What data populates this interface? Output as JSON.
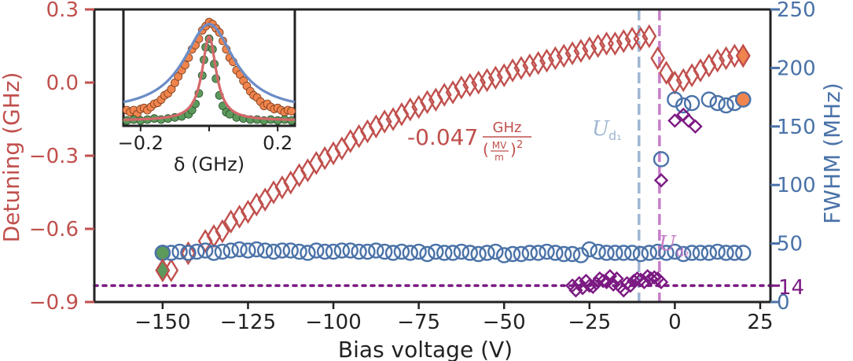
{
  "chart_data": {
    "type": "scatter",
    "xlabel": "Bias voltage (V)",
    "ylabel_left": "Detuning (GHz)",
    "ylabel_right": "FWHM (MHz)",
    "xlim": [
      -170,
      28
    ],
    "ylim_left": [
      -0.9,
      0.3
    ],
    "ylim_right": [
      0,
      250
    ],
    "x_ticks": [
      -150,
      -125,
      -100,
      -75,
      -50,
      -25,
      0,
      25
    ],
    "x_tick_labels": [
      "−150",
      "−125",
      "−100",
      "−75",
      "−50",
      "−25",
      "0",
      "25"
    ],
    "y_left_ticks": [
      -0.9,
      -0.6,
      -0.3,
      0.0,
      0.3
    ],
    "y_left_tick_labels": [
      "−0.9",
      "−0.6",
      "−0.3",
      "0.0",
      "0.3"
    ],
    "y_right_ticks": [
      0,
      50,
      100,
      150,
      200,
      250
    ],
    "y_right_tick_labels": [
      "0",
      "50",
      "100",
      "150",
      "200",
      "250"
    ],
    "colors": {
      "detuning": "#c0504d",
      "fwhm": "#4a72a8",
      "purple": "#7b1a82",
      "vline1": "#9fb6d2",
      "vline2": "#c77ec9",
      "highlight_orange": "#f0844d",
      "highlight_green": "#5b9a5b"
    },
    "series": [
      {
        "key": "detuning_red",
        "axis": "left",
        "marker": "diamond",
        "x": [
          -150,
          -147.5,
          -142.5,
          -137.5,
          -135,
          -132.5,
          -130,
          -127.5,
          -125,
          -122.5,
          -120,
          -117.5,
          -115,
          -112.5,
          -110,
          -107.5,
          -105,
          -102.5,
          -100,
          -97.5,
          -95,
          -92.5,
          -90,
          -87.5,
          -85,
          -82.5,
          -80,
          -77.5,
          -75,
          -72.5,
          -70,
          -67.5,
          -65,
          -62.5,
          -60,
          -57.5,
          -55,
          -52.5,
          -50,
          -47.5,
          -45,
          -42.5,
          -40,
          -37.5,
          -35,
          -32.5,
          -30,
          -27.5,
          -25,
          -22.5,
          -20,
          -17.5,
          -15,
          -12.5,
          -10,
          -7.5,
          -5,
          -2.5,
          0,
          2.5,
          5,
          7.5,
          10,
          12.5,
          15,
          17.5,
          20
        ],
        "y": [
          -0.77,
          -0.77,
          -0.7,
          -0.65,
          -0.63,
          -0.61,
          -0.57,
          -0.55,
          -0.53,
          -0.5,
          -0.48,
          -0.45,
          -0.43,
          -0.41,
          -0.38,
          -0.36,
          -0.33,
          -0.31,
          -0.29,
          -0.27,
          -0.24,
          -0.22,
          -0.2,
          -0.18,
          -0.16,
          -0.15,
          -0.13,
          -0.11,
          -0.1,
          -0.08,
          -0.07,
          -0.05,
          -0.04,
          -0.02,
          -0.01,
          0.0,
          0.01,
          0.02,
          0.03,
          0.05,
          0.06,
          0.07,
          0.08,
          0.09,
          0.1,
          0.11,
          0.12,
          0.13,
          0.14,
          0.15,
          0.16,
          0.16,
          0.17,
          0.18,
          0.18,
          0.19,
          0.1,
          0.04,
          0.0,
          0.01,
          0.03,
          0.05,
          0.07,
          0.09,
          0.1,
          0.11,
          0.11
        ]
      },
      {
        "key": "fwhm_blue",
        "axis": "right",
        "marker": "circle",
        "x": [
          -150,
          -147.5,
          -145,
          -142.5,
          -140,
          -137.5,
          -135,
          -132.5,
          -130,
          -127.5,
          -125,
          -122.5,
          -120,
          -117.5,
          -115,
          -112.5,
          -110,
          -107.5,
          -105,
          -102.5,
          -100,
          -97.5,
          -95,
          -92.5,
          -90,
          -87.5,
          -85,
          -82.5,
          -80,
          -77.5,
          -75,
          -72.5,
          -70,
          -67.5,
          -65,
          -62.5,
          -60,
          -57.5,
          -55,
          -52.5,
          -50,
          -47.5,
          -45,
          -42.5,
          -40,
          -37.5,
          -35,
          -32.5,
          -30,
          -27.5,
          -25,
          -22.5,
          -20,
          -17.5,
          -15,
          -12.5,
          -10,
          -7.5,
          -5,
          -2.5,
          0,
          2.5,
          5,
          7.5,
          10,
          12.5,
          15,
          17.5,
          20
        ],
        "y": [
          42,
          42,
          43,
          42,
          43,
          44,
          42,
          43,
          44,
          45,
          44,
          45,
          44,
          43,
          44,
          44,
          43,
          42,
          44,
          43,
          43,
          44,
          44,
          43,
          43,
          44,
          43,
          42,
          43,
          42,
          43,
          41,
          43,
          42,
          42,
          43,
          42,
          41,
          42,
          43,
          40,
          41,
          41,
          42,
          42,
          43,
          42,
          41,
          41,
          40,
          45,
          43,
          42,
          42,
          42,
          42,
          41,
          42,
          43,
          42,
          43,
          41,
          42,
          42,
          42,
          43,
          42,
          42,
          42
        ]
      },
      {
        "key": "fwhm_blue_transition",
        "axis": "right",
        "marker": "circle",
        "x": [
          -4,
          0,
          2.5,
          5,
          10,
          12.5,
          15,
          17.5,
          20
        ],
        "y": [
          122,
          173,
          168,
          170,
          173,
          170,
          168,
          170,
          173
        ]
      },
      {
        "key": "fwhm_purple_low",
        "axis": "right",
        "marker": "diamond",
        "x": [
          -30,
          -29,
          -28,
          -27,
          -26,
          -25,
          -24,
          -23,
          -22,
          -21,
          -20,
          -19,
          -18,
          -17,
          -16,
          -15,
          -14,
          -13,
          -12,
          -11,
          -10,
          -9,
          -8,
          -7,
          -6,
          -5,
          -4
        ],
        "y": [
          14,
          10,
          16,
          12,
          18,
          14,
          13,
          16,
          20,
          18,
          17,
          22,
          15,
          20,
          13,
          10,
          16,
          14,
          18,
          20,
          19,
          17,
          22,
          20,
          21,
          20,
          17
        ]
      },
      {
        "key": "fwhm_purple_high",
        "axis": "right",
        "marker": "diamond",
        "x": [
          -4,
          0,
          2.5,
          4,
          6
        ],
        "y": [
          104,
          155,
          160,
          155,
          150
        ]
      },
      {
        "key": "fwhm_line_14",
        "axis": "right",
        "type": "hline",
        "y": 14
      }
    ],
    "vlines": [
      {
        "x": -10.5,
        "color": "#9fb6d2"
      },
      {
        "x": -4.5,
        "color": "#c77ec9"
      }
    ],
    "highlights": [
      {
        "x": -150,
        "axis": "right",
        "y": 42,
        "marker": "circle",
        "color": "#5b9a5b"
      },
      {
        "x": -150,
        "axis": "left",
        "y": -0.77,
        "marker": "diamond",
        "color": "#5b9a5b"
      },
      {
        "x": 20,
        "axis": "right",
        "y": 173,
        "marker": "circle",
        "color": "#f0844d"
      },
      {
        "x": 20,
        "axis": "left",
        "y": 0.11,
        "marker": "diamond",
        "color": "#f0844d"
      }
    ],
    "annotations": {
      "slope_coef": "-0.047",
      "slope_unit_num": "GHz",
      "slope_unit_den": "MV",
      "slope_unit_den_sub": "m",
      "slope_exp": "2",
      "vline1_label": "U",
      "vline1_sub": "d₁",
      "vline2_label": "U",
      "vline2_sub": "d₂",
      "right_axis_marker": "14"
    },
    "inset": {
      "xlabel": "δ (GHz)",
      "x_ticks": [
        -0.2,
        0.2
      ],
      "x_tick_labels": [
        "−0.2",
        "0.2"
      ],
      "xlim": [
        -0.25,
        0.25
      ],
      "ylim": [
        0,
        1.05
      ],
      "orange_points": [
        [
          -0.24,
          0.12
        ],
        [
          -0.23,
          0.1
        ],
        [
          -0.22,
          0.12
        ],
        [
          -0.21,
          0.08
        ],
        [
          -0.2,
          0.13
        ],
        [
          -0.19,
          0.14
        ],
        [
          -0.18,
          0.12
        ],
        [
          -0.17,
          0.15
        ],
        [
          -0.16,
          0.18
        ],
        [
          -0.15,
          0.19
        ],
        [
          -0.14,
          0.22
        ],
        [
          -0.13,
          0.26
        ],
        [
          -0.12,
          0.28
        ],
        [
          -0.11,
          0.32
        ],
        [
          -0.1,
          0.38
        ],
        [
          -0.09,
          0.44
        ],
        [
          -0.08,
          0.5
        ],
        [
          -0.07,
          0.55
        ],
        [
          -0.06,
          0.62
        ],
        [
          -0.05,
          0.7
        ],
        [
          -0.04,
          0.74
        ],
        [
          -0.03,
          0.8
        ],
        [
          -0.02,
          0.88
        ],
        [
          -0.01,
          0.92
        ],
        [
          0.0,
          0.96
        ],
        [
          0.01,
          0.94
        ],
        [
          0.02,
          0.9
        ],
        [
          0.03,
          0.86
        ],
        [
          0.04,
          0.78
        ],
        [
          0.05,
          0.7
        ],
        [
          0.06,
          0.62
        ],
        [
          0.07,
          0.58
        ],
        [
          0.08,
          0.5
        ],
        [
          0.09,
          0.46
        ],
        [
          0.1,
          0.4
        ],
        [
          0.11,
          0.35
        ],
        [
          0.12,
          0.3
        ],
        [
          0.13,
          0.26
        ],
        [
          0.14,
          0.24
        ],
        [
          0.15,
          0.2
        ],
        [
          0.16,
          0.16
        ],
        [
          0.17,
          0.18
        ],
        [
          0.18,
          0.15
        ],
        [
          0.19,
          0.13
        ],
        [
          0.2,
          0.14
        ],
        [
          0.21,
          0.12
        ],
        [
          0.22,
          0.1
        ],
        [
          0.23,
          0.12
        ],
        [
          0.24,
          0.11
        ]
      ],
      "green_points": [
        [
          -0.24,
          0.02
        ],
        [
          -0.22,
          0.03
        ],
        [
          -0.2,
          0.02
        ],
        [
          -0.18,
          0.03
        ],
        [
          -0.16,
          0.04
        ],
        [
          -0.14,
          0.03
        ],
        [
          -0.12,
          0.04
        ],
        [
          -0.1,
          0.05
        ],
        [
          -0.08,
          0.06
        ],
        [
          -0.06,
          0.08
        ],
        [
          -0.05,
          0.12
        ],
        [
          -0.04,
          0.18
        ],
        [
          -0.03,
          0.28
        ],
        [
          -0.02,
          0.45
        ],
        [
          -0.015,
          0.6
        ],
        [
          -0.01,
          0.72
        ],
        [
          0.0,
          0.8
        ],
        [
          0.01,
          0.7
        ],
        [
          0.015,
          0.56
        ],
        [
          0.02,
          0.42
        ],
        [
          0.03,
          0.26
        ],
        [
          0.04,
          0.16
        ],
        [
          0.05,
          0.1
        ],
        [
          0.06,
          0.08
        ],
        [
          0.08,
          0.05
        ],
        [
          0.1,
          0.04
        ],
        [
          0.12,
          0.03
        ],
        [
          0.14,
          0.03
        ],
        [
          0.16,
          0.02
        ],
        [
          0.18,
          0.03
        ],
        [
          0.2,
          0.02
        ],
        [
          0.22,
          0.03
        ],
        [
          0.24,
          0.02
        ]
      ],
      "blue_fit": {
        "center": 0.0,
        "gamma": 0.09,
        "amp": 0.84,
        "offset": 0.1
      },
      "red_fit": {
        "center": 0.0,
        "gamma": 0.025,
        "amp": 0.8,
        "offset": 0.02
      }
    }
  }
}
